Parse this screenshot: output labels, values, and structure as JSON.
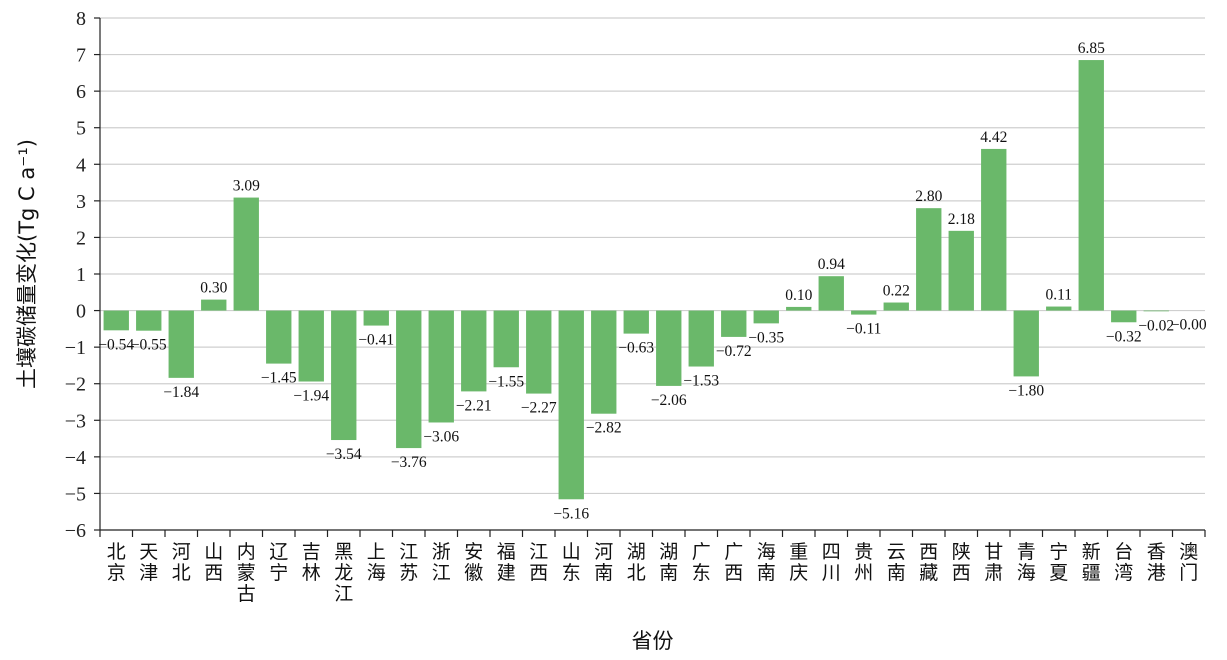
{
  "chart_data": {
    "type": "bar",
    "xlabel": "省份",
    "ylabel": "土壤碳储量变化(Tg C a⁻¹)",
    "ylim": [
      -6,
      8
    ],
    "yticks": [
      8,
      7,
      6,
      5,
      4,
      3,
      2,
      1,
      0,
      -1,
      -2,
      -3,
      -4,
      -5,
      -6
    ],
    "ytick_labels": [
      "8",
      "7",
      "6",
      "5",
      "4",
      "3",
      "2",
      "1",
      "0",
      "−1",
      "−2",
      "−3",
      "−4",
      "−5",
      "−6"
    ],
    "grid": true,
    "bar_color": "#6ab86a",
    "grid_color": "#cfcfcf",
    "categories": [
      "北京",
      "天津",
      "河北",
      "山西",
      "内蒙古",
      "辽宁",
      "吉林",
      "黑龙江",
      "上海",
      "江苏",
      "浙江",
      "安徽",
      "福建",
      "江西",
      "山东",
      "河南",
      "湖北",
      "湖南",
      "广东",
      "广西",
      "海南",
      "重庆",
      "四川",
      "贵州",
      "云南",
      "西藏",
      "陕西",
      "甘肃",
      "青海",
      "宁夏",
      "新疆",
      "台湾",
      "香港",
      "澳门"
    ],
    "values": [
      -0.54,
      -0.55,
      -1.84,
      0.3,
      3.09,
      -1.45,
      -1.94,
      -3.54,
      -0.41,
      -3.76,
      -3.06,
      -2.21,
      -1.55,
      -2.27,
      -5.16,
      -2.82,
      -0.63,
      -2.06,
      -1.53,
      -0.72,
      -0.35,
      0.1,
      0.94,
      -0.11,
      0.22,
      2.8,
      2.18,
      4.42,
      -1.8,
      0.11,
      6.85,
      -0.32,
      -0.02,
      -0.0
    ],
    "value_labels": [
      "−0.54",
      "−0.55",
      "−1.84",
      "0.30",
      "3.09",
      "−1.45",
      "−1.94",
      "−3.54",
      "−0.41",
      "−3.76",
      "−3.06",
      "−2.21",
      "−1.55",
      "−2.27",
      "−5.16",
      "−2.82",
      "−0.63",
      "−2.06",
      "−1.53",
      "−0.72",
      "−0.35",
      "0.10",
      "0.94",
      "−0.11",
      "0.22",
      "2.80",
      "2.18",
      "4.42",
      "−1.80",
      "0.11",
      "6.85",
      "−0.32",
      "−0.02",
      "−0.00"
    ]
  }
}
